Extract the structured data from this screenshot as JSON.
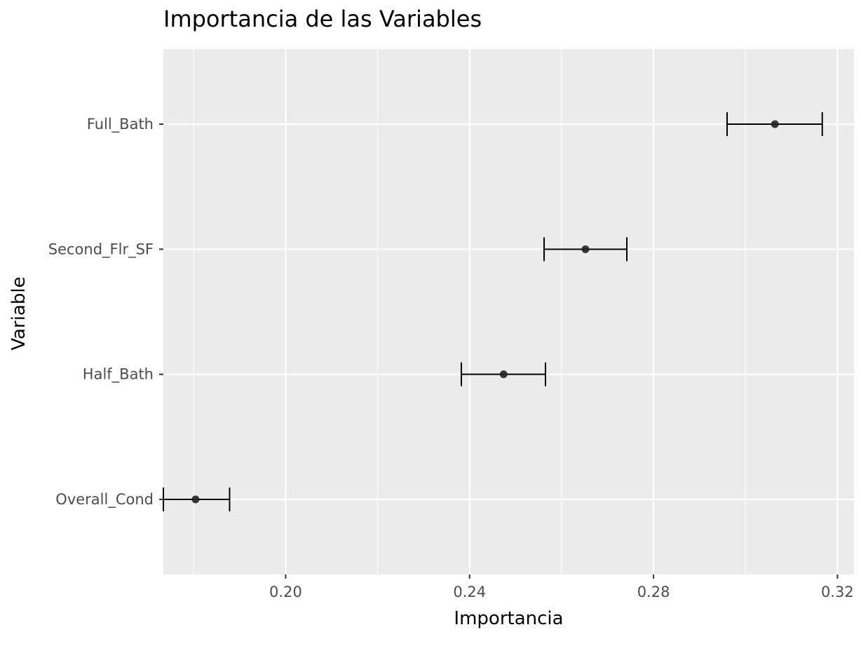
{
  "chart_data": {
    "type": "scatter",
    "title": "Importancia de las Variables",
    "xlabel": "Importancia",
    "ylabel": "Variable",
    "xlim": [
      0.1734,
      0.3236
    ],
    "x_ticks": [
      0.2,
      0.24,
      0.28,
      0.32
    ],
    "x_tick_labels": [
      "0.20",
      "0.24",
      "0.28",
      "0.32"
    ],
    "categories": [
      "Full_Bath",
      "Second_Flr_SF",
      "Half_Bath",
      "Overall_Cond"
    ],
    "points": [
      {
        "variable": "Full_Bath",
        "value": 0.3064,
        "lower": 0.296,
        "upper": 0.3167
      },
      {
        "variable": "Second_Flr_SF",
        "value": 0.2652,
        "lower": 0.2562,
        "upper": 0.2742
      },
      {
        "variable": "Half_Bath",
        "value": 0.2474,
        "lower": 0.2382,
        "upper": 0.2565
      },
      {
        "variable": "Overall_Cond",
        "value": 0.1804,
        "lower": 0.1734,
        "upper": 0.1878
      }
    ],
    "grid": true,
    "colors": {
      "panel_background": "#ebebeb",
      "grid_major": "#ffffff",
      "point": "#222222",
      "errorbar": "#000000"
    }
  }
}
